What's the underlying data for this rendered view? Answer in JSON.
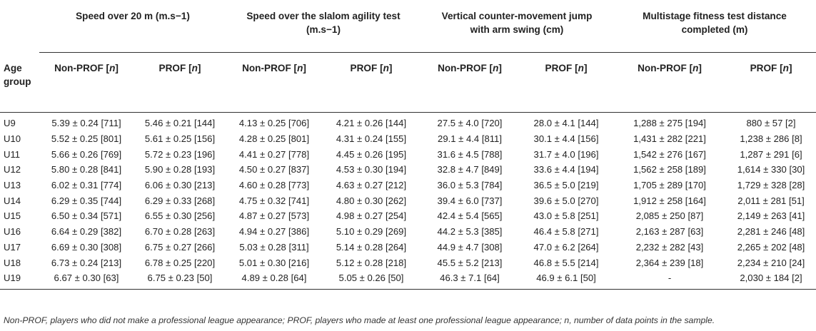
{
  "header_groups": [
    {
      "line1": "Speed over 20 m (m.s−1)",
      "line2": ""
    },
    {
      "line1": "Speed over the slalom agility test",
      "line2": "(m.s−1)"
    },
    {
      "line1": "Vertical counter-movement jump",
      "line2": "with arm swing (cm)"
    },
    {
      "line1": "Multistage fitness test distance",
      "line2": "completed (m)"
    }
  ],
  "age_header": {
    "line1": "Age",
    "line2": "group"
  },
  "sub_headers": {
    "non_prof": "Non-PROF [n]",
    "prof": "PROF [n]"
  },
  "rows": [
    [
      "U9",
      "5.39 ± 0.24 [711]",
      "5.46 ± 0.21 [144]",
      "4.13 ± 0.25 [706]",
      "4.21 ± 0.26 [144]",
      "27.5 ± 4.0 [720]",
      "28.0 ± 4.1 [144]",
      "1,288 ± 275 [194]",
      "880 ± 57 [2]"
    ],
    [
      "U10",
      "5.52 ± 0.25 [801]",
      "5.61 ± 0.25 [156]",
      "4.28 ± 0.25 [801]",
      "4.31 ± 0.24 [155]",
      "29.1 ± 4.4 [811]",
      "30.1 ± 4.4 [156]",
      "1,431 ± 282 [221]",
      "1,238 ± 286 [8]"
    ],
    [
      "U11",
      "5.66 ± 0.26 [769]",
      "5.72 ± 0.23 [196]",
      "4.41 ± 0.27 [778]",
      "4.45 ± 0.26 [195]",
      "31.6 ± 4.5 [788]",
      "31.7 ± 4.0 [196]",
      "1,542 ± 276 [167]",
      "1,287 ± 291 [6]"
    ],
    [
      "U12",
      "5.80 ± 0.28 [841]",
      "5.90 ± 0.28 [193]",
      "4.50 ± 0.27 [837]",
      "4.53 ± 0.30 [194]",
      "32.8 ± 4.7 [849]",
      "33.6 ± 4.4 [194]",
      "1,562 ± 258 [189]",
      "1,614 ± 330 [30]"
    ],
    [
      "U13",
      "6.02 ± 0.31 [774]",
      "6.06 ± 0.30 [213]",
      "4.60 ± 0.28 [773]",
      "4.63 ± 0.27 [212]",
      "36.0 ± 5.3 [784]",
      "36.5 ± 5.0 [219]",
      "1,705 ± 289 [170]",
      "1,729 ± 328 [28]"
    ],
    [
      "U14",
      "6.29 ± 0.35 [744]",
      "6.29 ± 0.33 [268]",
      "4.75 ± 0.32 [741]",
      "4.80 ± 0.30 [262]",
      "39.4 ± 6.0 [737]",
      "39.6 ± 5.0 [270]",
      "1,912 ± 258 [164]",
      "2,011 ± 281 [51]"
    ],
    [
      "U15",
      "6.50 ± 0.34 [571]",
      "6.55 ± 0.30 [256]",
      "4.87 ± 0.27 [573]",
      "4.98 ± 0.27 [254]",
      "42.4 ± 5.4 [565]",
      "43.0 ± 5.8 [251]",
      "2,085 ± 250 [87]",
      "2,149 ± 263 [41]"
    ],
    [
      "U16",
      "6.64 ± 0.29 [382]",
      "6.70 ± 0.28 [263]",
      "4.94 ± 0.27 [386]",
      "5.10 ± 0.29 [269]",
      "44.2 ± 5.3 [385]",
      "46.4 ± 5.8 [271]",
      "2,163 ± 287 [63]",
      "2,281 ± 246 [48]"
    ],
    [
      "U17",
      "6.69 ± 0.30 [308]",
      "6.75 ± 0.27 [266]",
      "5.03 ± 0.28 [311]",
      "5.14 ± 0.28 [264]",
      "44.9 ± 4.7 [308]",
      "47.0 ± 6.2 [264]",
      "2,232 ± 282 [43]",
      "2,265 ± 202 [48]"
    ],
    [
      "U18",
      "6.73 ± 0.24 [213]",
      "6.78 ± 0.25 [220]",
      "5.01 ± 0.30 [216]",
      "5.12 ± 0.28 [218]",
      "45.5 ± 5.2 [213]",
      "46.8 ± 5.5 [214]",
      "2,364 ± 239 [18]",
      "2,234 ± 210 [24]"
    ],
    [
      "U19",
      "6.67 ± 0.30 [63]",
      "6.75 ± 0.23 [50]",
      "4.89 ± 0.28 [64]",
      "5.05 ± 0.26 [50]",
      "46.3 ± 7.1 [64]",
      "46.9 ± 6.1 [50]",
      "-",
      "2,030 ± 184 [2]"
    ]
  ],
  "footnote": "Non-PROF, players who did not make a professional league appearance; PROF, players who made at least one professional league appearance; n, number of data points in the sample."
}
